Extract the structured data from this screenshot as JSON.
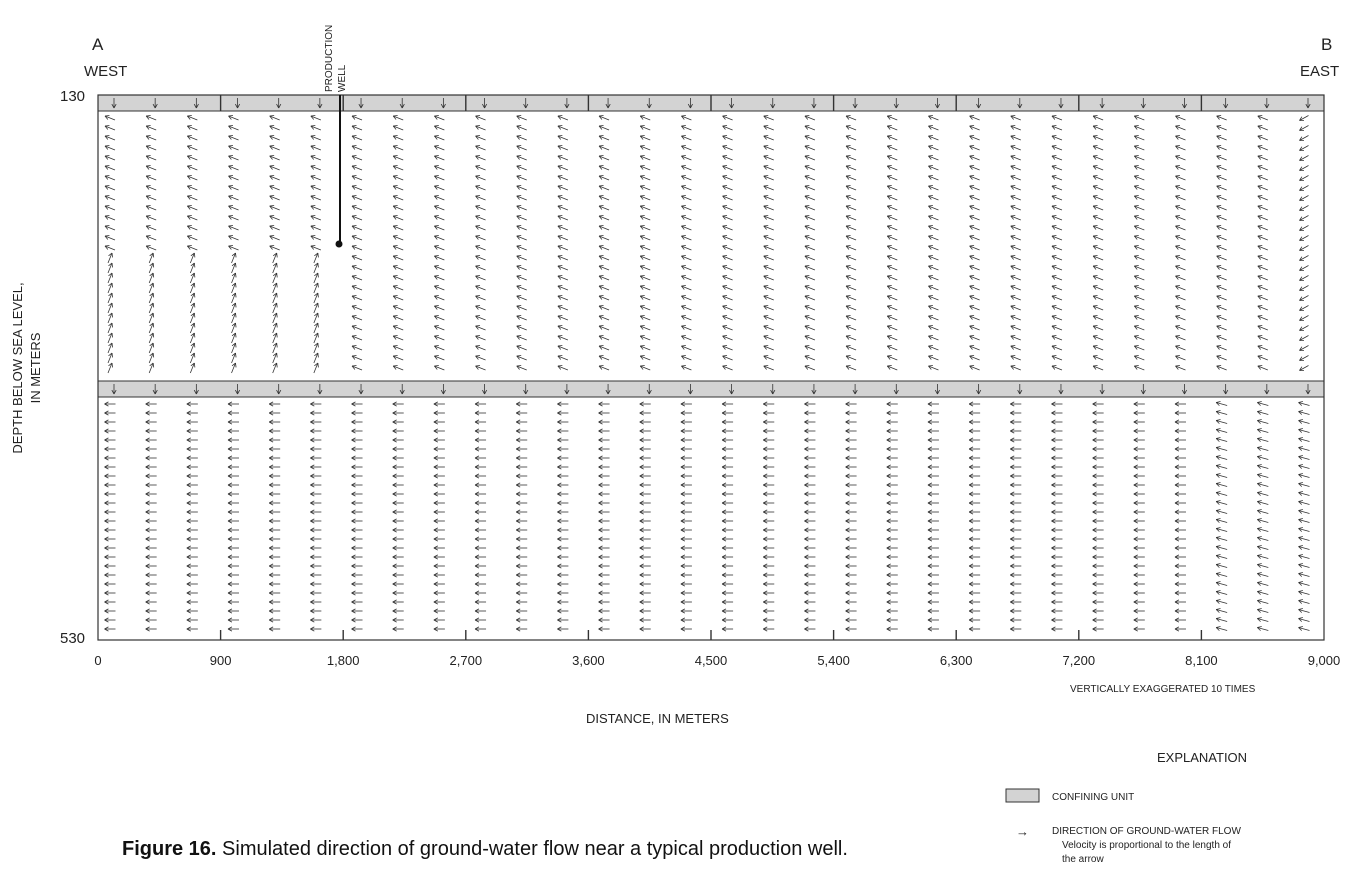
{
  "section": {
    "left_letter": "A",
    "left_dir": "WEST",
    "right_letter": "B",
    "right_dir": "EAST"
  },
  "well_label": {
    "line1": "PRODUCTION",
    "line2": "WELL"
  },
  "y_axis": {
    "label_line1": "DEPTH BELOW SEA LEVEL,",
    "label_line2": "IN METERS",
    "top_value": "130",
    "bottom_value": "530",
    "range": [
      130,
      530
    ]
  },
  "x_axis": {
    "ticks": [
      "0",
      "900",
      "1,800",
      "2,700",
      "3,600",
      "4,500",
      "5,400",
      "6,300",
      "7,200",
      "8,100",
      "9,000"
    ],
    "label": "DISTANCE, IN METERS",
    "note": "VERTICALLY EXAGGERATED 10 TIMES",
    "range": [
      0,
      9000
    ]
  },
  "explanation": {
    "title": "EXPLANATION",
    "confining_label": "CONFINING UNIT",
    "flow_symbol": "→",
    "flow_label": "DIRECTION OF GROUND-WATER FLOW",
    "flow_desc1": "Velocity is proportional to the length of",
    "flow_desc2": "the arrow"
  },
  "caption": {
    "bold": "Figure 16.",
    "text": " Simulated direction of ground-water flow near a typical production well."
  },
  "colors": {
    "confining": "#d3d3d3",
    "line": "#333333"
  }
}
